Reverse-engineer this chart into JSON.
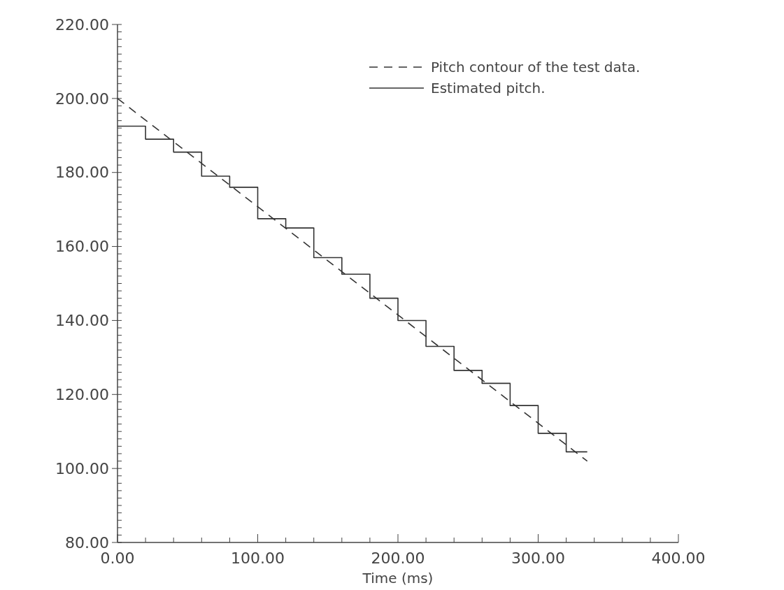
{
  "chart_data": {
    "type": "step",
    "xlabel": "Time (ms)",
    "xlim": [
      0,
      400
    ],
    "ylim": [
      80,
      220
    ],
    "xticks": [
      {
        "value": 0,
        "label": "0.00"
      },
      {
        "value": 20,
        "label": null
      },
      {
        "value": 40,
        "label": null
      },
      {
        "value": 60,
        "label": null
      },
      {
        "value": 80,
        "label": null
      },
      {
        "value": 100,
        "label": "100.00"
      },
      {
        "value": 120,
        "label": null
      },
      {
        "value": 140,
        "label": null
      },
      {
        "value": 160,
        "label": null
      },
      {
        "value": 180,
        "label": null
      },
      {
        "value": 200,
        "label": "200.00"
      },
      {
        "value": 220,
        "label": null
      },
      {
        "value": 240,
        "label": null
      },
      {
        "value": 260,
        "label": null
      },
      {
        "value": 280,
        "label": null
      },
      {
        "value": 300,
        "label": "300.00"
      },
      {
        "value": 320,
        "label": null
      },
      {
        "value": 340,
        "label": null
      },
      {
        "value": 360,
        "label": null
      },
      {
        "value": 380,
        "label": null
      },
      {
        "value": 400,
        "label": "400.00"
      }
    ],
    "yticks": [
      {
        "value": 80,
        "label": "80.00"
      },
      {
        "value": 82,
        "label": null
      },
      {
        "value": 84,
        "label": null
      },
      {
        "value": 86,
        "label": null
      },
      {
        "value": 88,
        "label": null
      },
      {
        "value": 90,
        "label": null
      },
      {
        "value": 92,
        "label": null
      },
      {
        "value": 94,
        "label": null
      },
      {
        "value": 96,
        "label": null
      },
      {
        "value": 98,
        "label": null
      },
      {
        "value": 100,
        "label": "100.00"
      },
      {
        "value": 102,
        "label": null
      },
      {
        "value": 104,
        "label": null
      },
      {
        "value": 106,
        "label": null
      },
      {
        "value": 108,
        "label": null
      },
      {
        "value": 110,
        "label": null
      },
      {
        "value": 112,
        "label": null
      },
      {
        "value": 114,
        "label": null
      },
      {
        "value": 116,
        "label": null
      },
      {
        "value": 118,
        "label": null
      },
      {
        "value": 120,
        "label": "120.00"
      },
      {
        "value": 122,
        "label": null
      },
      {
        "value": 124,
        "label": null
      },
      {
        "value": 126,
        "label": null
      },
      {
        "value": 128,
        "label": null
      },
      {
        "value": 130,
        "label": null
      },
      {
        "value": 132,
        "label": null
      },
      {
        "value": 134,
        "label": null
      },
      {
        "value": 136,
        "label": null
      },
      {
        "value": 138,
        "label": null
      },
      {
        "value": 140,
        "label": "140.00"
      },
      {
        "value": 142,
        "label": null
      },
      {
        "value": 144,
        "label": null
      },
      {
        "value": 146,
        "label": null
      },
      {
        "value": 148,
        "label": null
      },
      {
        "value": 150,
        "label": null
      },
      {
        "value": 152,
        "label": null
      },
      {
        "value": 154,
        "label": null
      },
      {
        "value": 156,
        "label": null
      },
      {
        "value": 158,
        "label": null
      },
      {
        "value": 160,
        "label": "160.00"
      },
      {
        "value": 162,
        "label": null
      },
      {
        "value": 164,
        "label": null
      },
      {
        "value": 166,
        "label": null
      },
      {
        "value": 168,
        "label": null
      },
      {
        "value": 170,
        "label": null
      },
      {
        "value": 172,
        "label": null
      },
      {
        "value": 174,
        "label": null
      },
      {
        "value": 176,
        "label": null
      },
      {
        "value": 178,
        "label": null
      },
      {
        "value": 180,
        "label": "180.00"
      },
      {
        "value": 182,
        "label": null
      },
      {
        "value": 184,
        "label": null
      },
      {
        "value": 186,
        "label": null
      },
      {
        "value": 188,
        "label": null
      },
      {
        "value": 190,
        "label": null
      },
      {
        "value": 192,
        "label": null
      },
      {
        "value": 194,
        "label": null
      },
      {
        "value": 196,
        "label": null
      },
      {
        "value": 198,
        "label": null
      },
      {
        "value": 200,
        "label": "200.00"
      },
      {
        "value": 202,
        "label": null
      },
      {
        "value": 204,
        "label": null
      },
      {
        "value": 206,
        "label": null
      },
      {
        "value": 208,
        "label": null
      },
      {
        "value": 210,
        "label": null
      },
      {
        "value": 212,
        "label": null
      },
      {
        "value": 214,
        "label": null
      },
      {
        "value": 216,
        "label": null
      },
      {
        "value": 218,
        "label": null
      },
      {
        "value": 220,
        "label": "220.00"
      }
    ],
    "legend": "top right",
    "series": [
      {
        "name": "Pitch contour of the test data.",
        "type": "line",
        "line_style": "dashed",
        "color": "#333333",
        "x": [
          0,
          335
        ],
        "values": [
          200,
          102
        ]
      },
      {
        "name": "Estimated pitch.",
        "line_style": "solid",
        "color": "#333333",
        "x": [
          0,
          20,
          40,
          60,
          80,
          100,
          120,
          140,
          160,
          180,
          200,
          220,
          240,
          260,
          280,
          300,
          320,
          335
        ],
        "values": [
          192.5,
          189,
          185.5,
          179,
          176,
          167.5,
          165,
          157,
          152.5,
          146,
          140,
          133,
          126.5,
          123,
          117,
          109.5,
          104.5,
          104.5
        ]
      }
    ]
  }
}
